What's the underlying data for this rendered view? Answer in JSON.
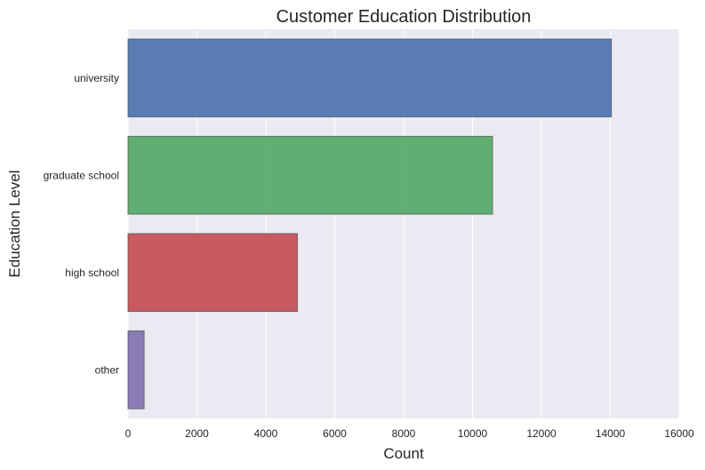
{
  "chart_data": {
    "type": "bar",
    "orientation": "horizontal",
    "title": "Customer Education Distribution",
    "xlabel": "Count",
    "ylabel": "Education Level",
    "categories": [
      "university",
      "graduate school",
      "high school",
      "other"
    ],
    "values": [
      14030,
      10581,
      4917,
      468
    ],
    "colors": [
      "#4c72b0",
      "#55a868",
      "#c44e52",
      "#8172b2"
    ],
    "xlim": [
      0,
      16000
    ],
    "xticks": [
      0,
      2000,
      4000,
      6000,
      8000,
      10000,
      12000,
      14000,
      16000
    ],
    "xtick_labels": [
      "0",
      "2000",
      "4000",
      "6000",
      "8000",
      "10000",
      "12000",
      "14000",
      "16000"
    ],
    "grid": true,
    "background": "#eaeaf2"
  }
}
